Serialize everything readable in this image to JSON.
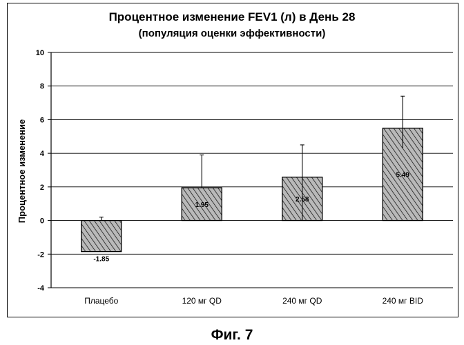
{
  "figure": {
    "caption": "Фиг. 7"
  },
  "chart_data": {
    "type": "bar",
    "title": "Процентное изменение FEV1 (л) в День 28",
    "subtitle": "(популяция оценки эффективности)",
    "xlabel": "",
    "ylabel": "Процентное изменение",
    "categories": [
      "Плацебо",
      "120 мг QD",
      "240 мг QD",
      "240 мг BID"
    ],
    "values": [
      -1.85,
      1.95,
      2.58,
      5.49
    ],
    "value_labels": [
      "-1.85",
      "1.95",
      "2.58",
      "5.49"
    ],
    "error_upper": [
      0.2,
      3.9,
      4.5,
      7.4
    ],
    "error_lower": [
      null,
      null,
      0.0,
      4.3
    ],
    "ylim": [
      -4,
      10
    ],
    "yticks": [
      "-4",
      "-2",
      "0",
      "2",
      "4",
      "6",
      "8",
      "10"
    ],
    "grid": true,
    "legend": "none",
    "colors": {
      "bar_fill": "#b9b9b9",
      "hatch": "#1a1a1a",
      "axis": "#000000",
      "grid": "#000000"
    }
  }
}
